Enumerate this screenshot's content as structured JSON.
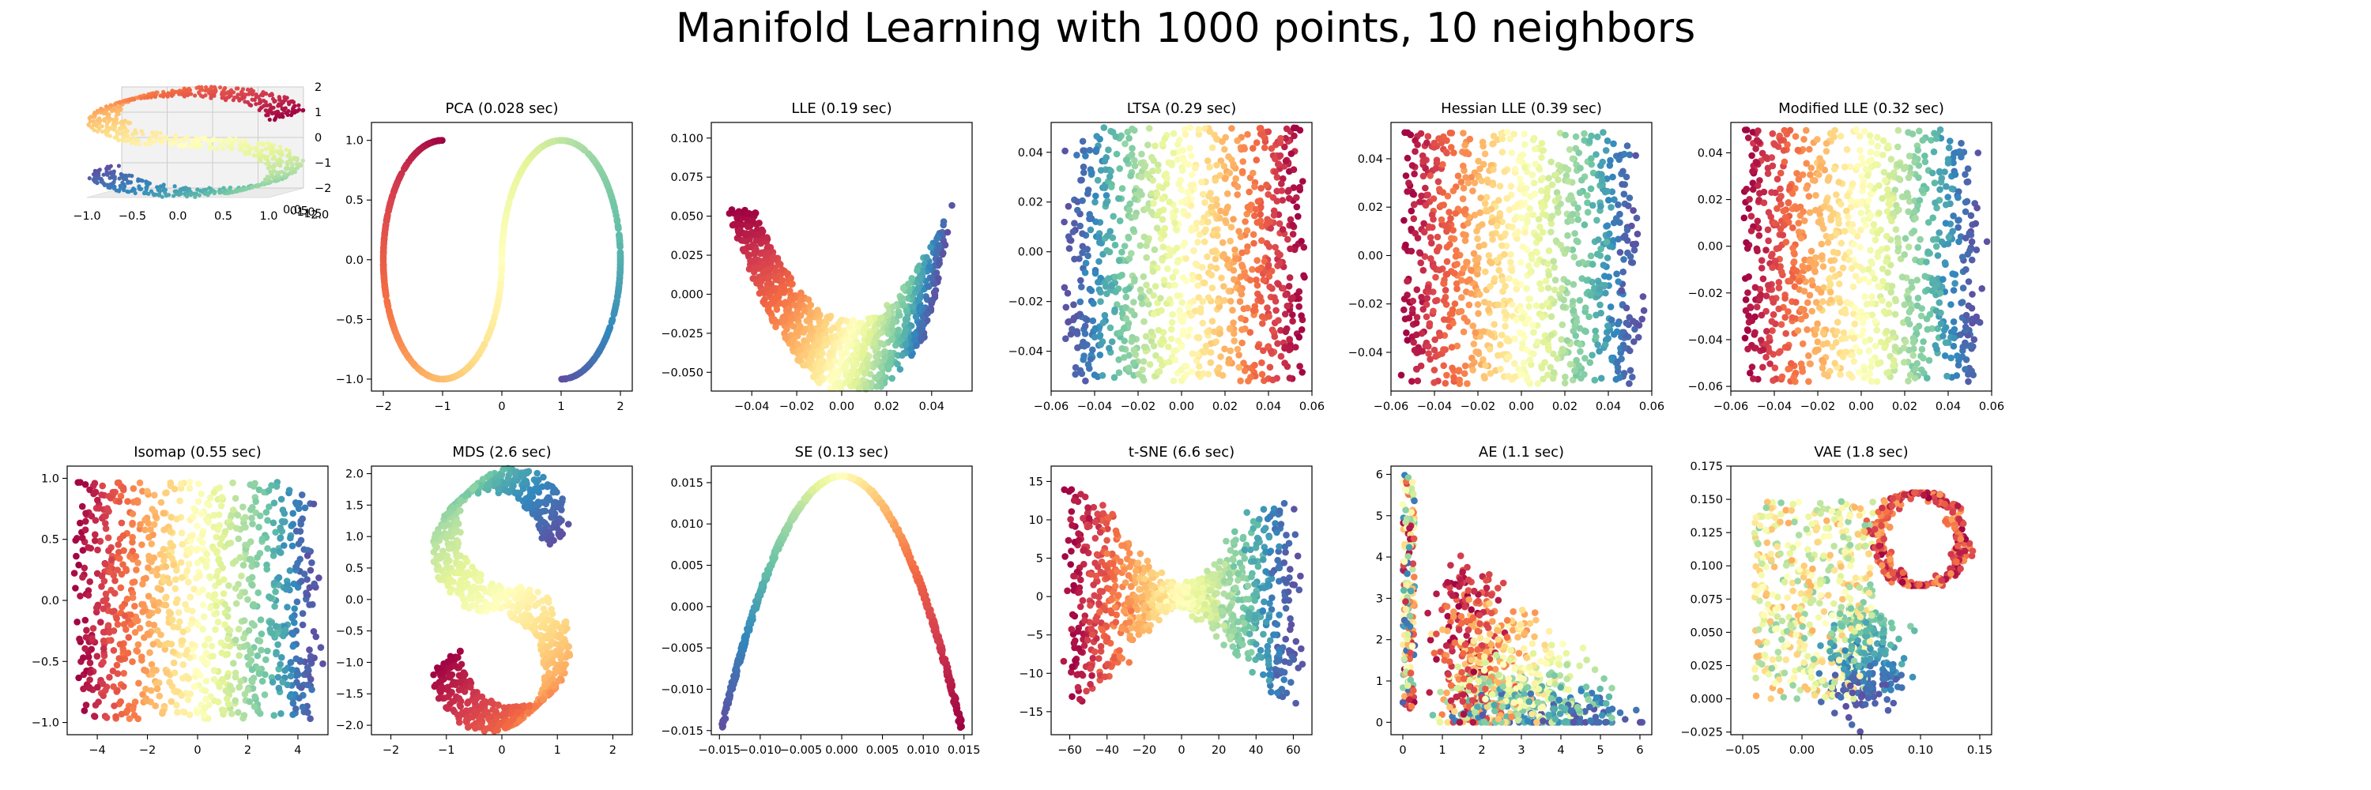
{
  "suptitle": "Manifold Learning with 1000 points, 10 neighbors",
  "colormap": [
    "#9e0142",
    "#d53e4f",
    "#f46d43",
    "#fdae61",
    "#fee08b",
    "#ffffbf",
    "#e6f598",
    "#abdda4",
    "#66c2a5",
    "#3288bd",
    "#5e4fa2"
  ],
  "chart_data": [
    {
      "type": "scatter",
      "title": "",
      "projection": "3d",
      "xlim": [
        -1.0,
        1.0
      ],
      "ylim": [
        0,
        2
      ],
      "zlim": [
        -2,
        2
      ],
      "x_ticks": [
        "−1.0",
        "−0.5",
        "0.0",
        "0.5",
        "1.0"
      ],
      "z_ticks": [
        "2",
        "1",
        "0",
        "−1",
        "−2"
      ],
      "y_ticks": [
        "0.0",
        "0.5",
        "1.0",
        "1.5",
        "2.0"
      ],
      "description_of_points": "S-curve dataset colored by position along the curve"
    },
    {
      "type": "scatter",
      "title": "PCA (0.028 sec)",
      "xlim": [
        -2.2,
        2.2
      ],
      "ylim": [
        -1.1,
        1.15
      ],
      "x_ticks": [
        -2,
        -1,
        0,
        1,
        2
      ],
      "x_tick_labels": [
        "−2",
        "−1",
        "0",
        "1",
        "2"
      ],
      "y_ticks": [
        -1.0,
        -0.5,
        0.0,
        0.5,
        1.0
      ],
      "y_tick_labels": [
        "−1.0",
        "−0.5",
        "0.0",
        "0.5",
        "1.0"
      ],
      "shape": "s-curve outline"
    },
    {
      "type": "scatter",
      "title": "LLE (0.19 sec)",
      "xlim": [
        -0.058,
        0.058
      ],
      "ylim": [
        -0.062,
        0.11
      ],
      "x_ticks": [
        -0.04,
        -0.02,
        0.0,
        0.02,
        0.04
      ],
      "x_tick_labels": [
        "−0.04",
        "−0.02",
        "0.00",
        "0.02",
        "0.04"
      ],
      "y_ticks": [
        -0.05,
        -0.025,
        0.0,
        0.025,
        0.05,
        0.075,
        0.1
      ],
      "y_tick_labels": [
        "−0.050",
        "−0.025",
        "0.000",
        "0.025",
        "0.050",
        "0.075",
        "0.100"
      ],
      "shape": "v-shaped band"
    },
    {
      "type": "scatter",
      "title": "LTSA (0.29 sec)",
      "xlim": [
        -0.06,
        0.06
      ],
      "ylim": [
        -0.056,
        0.052
      ],
      "x_ticks": [
        -0.06,
        -0.04,
        -0.02,
        0.0,
        0.02,
        0.04,
        0.06
      ],
      "x_tick_labels": [
        "−0.06",
        "−0.04",
        "−0.02",
        "0.00",
        "0.02",
        "0.04",
        "0.06"
      ],
      "y_ticks": [
        -0.04,
        -0.02,
        0.0,
        0.02,
        0.04
      ],
      "y_tick_labels": [
        "−0.04",
        "−0.02",
        "0.00",
        "0.02",
        "0.04"
      ],
      "shape": "filled rectangle, yellow-green-blue left to right"
    },
    {
      "type": "scatter",
      "title": "Hessian LLE (0.39 sec)",
      "xlim": [
        -0.06,
        0.06
      ],
      "ylim": [
        -0.056,
        0.055
      ],
      "x_ticks": [
        -0.06,
        -0.04,
        -0.02,
        0.0,
        0.02,
        0.04,
        0.06
      ],
      "x_tick_labels": [
        "−0.06",
        "−0.04",
        "−0.02",
        "0.00",
        "0.02",
        "0.04",
        "0.06"
      ],
      "y_ticks": [
        -0.04,
        -0.02,
        0.0,
        0.02,
        0.04
      ],
      "y_tick_labels": [
        "−0.04",
        "−0.02",
        "0.00",
        "0.02",
        "0.04"
      ],
      "shape": "filled rectangle, red to blue left to right"
    },
    {
      "type": "scatter",
      "title": "Modified LLE (0.32 sec)",
      "xlim": [
        -0.06,
        0.06
      ],
      "ylim": [
        -0.062,
        0.053
      ],
      "x_ticks": [
        -0.06,
        -0.04,
        -0.02,
        0.0,
        0.02,
        0.04,
        0.06
      ],
      "x_tick_labels": [
        "−0.06",
        "−0.04",
        "−0.02",
        "0.00",
        "0.02",
        "0.04",
        "0.06"
      ],
      "y_ticks": [
        -0.06,
        -0.04,
        -0.02,
        0.0,
        0.02,
        0.04
      ],
      "y_tick_labels": [
        "−0.06",
        "−0.04",
        "−0.02",
        "0.00",
        "0.02",
        "0.04"
      ],
      "shape": "filled rectangle, red to blue left to right"
    },
    {
      "type": "scatter",
      "title": "Isomap (0.55 sec)",
      "xlim": [
        -5.2,
        5.2
      ],
      "ylim": [
        -1.1,
        1.1
      ],
      "x_ticks": [
        -4,
        -2,
        0,
        2,
        4
      ],
      "x_tick_labels": [
        "−4",
        "−2",
        "0",
        "2",
        "4"
      ],
      "y_ticks": [
        -1.0,
        -0.5,
        0.0,
        0.5,
        1.0
      ],
      "y_tick_labels": [
        "−1.0",
        "−0.5",
        "0.0",
        "0.5",
        "1.0"
      ],
      "shape": "filled rectangle, red to blue left to right"
    },
    {
      "type": "scatter",
      "title": "MDS (2.6 sec)",
      "xlim": [
        -2.35,
        2.35
      ],
      "ylim": [
        -2.15,
        2.12
      ],
      "x_ticks": [
        -2,
        -1,
        0,
        1,
        2
      ],
      "x_tick_labels": [
        "−2",
        "−1",
        "0",
        "1",
        "2"
      ],
      "y_ticks": [
        -2.0,
        -1.5,
        -1.0,
        -0.5,
        0.0,
        0.5,
        1.0,
        1.5,
        2.0
      ],
      "y_tick_labels": [
        "−2.0",
        "−1.5",
        "−1.0",
        "−0.5",
        "0.0",
        "0.5",
        "1.0",
        "1.5",
        "2.0"
      ],
      "shape": "thick s-curve band"
    },
    {
      "type": "scatter",
      "title": "SE (0.13 sec)",
      "xlim": [
        -0.016,
        0.016
      ],
      "ylim": [
        -0.0155,
        0.017
      ],
      "x_ticks": [
        -0.015,
        -0.01,
        -0.005,
        0.0,
        0.005,
        0.01,
        0.015
      ],
      "x_tick_labels": [
        "−0.015",
        "−0.010",
        "−0.005",
        "0.000",
        "0.005",
        "0.010",
        "0.015"
      ],
      "y_ticks": [
        -0.015,
        -0.01,
        -0.005,
        0.0,
        0.005,
        0.01,
        0.015
      ],
      "y_tick_labels": [
        "−0.015",
        "−0.010",
        "−0.005",
        "0.000",
        "0.005",
        "0.010",
        "0.015"
      ],
      "shape": "inverted parabola arc"
    },
    {
      "type": "scatter",
      "title": "t-SNE (6.6 sec)",
      "xlim": [
        -70,
        70
      ],
      "ylim": [
        -18,
        17
      ],
      "x_ticks": [
        -60,
        -40,
        -20,
        0,
        20,
        40,
        60
      ],
      "x_tick_labels": [
        "−60",
        "−40",
        "−20",
        "0",
        "20",
        "40",
        "60"
      ],
      "y_ticks": [
        -15,
        -10,
        -5,
        0,
        5,
        10,
        15
      ],
      "y_tick_labels": [
        "−15",
        "−10",
        "−5",
        "0",
        "5",
        "10",
        "15"
      ],
      "shape": "folded band"
    },
    {
      "type": "scatter",
      "title": "AE (1.1 sec)",
      "xlim": [
        -0.3,
        6.3
      ],
      "ylim": [
        -0.3,
        6.2
      ],
      "x_ticks": [
        0,
        1,
        2,
        3,
        4,
        5,
        6
      ],
      "x_tick_labels": [
        "0",
        "1",
        "2",
        "3",
        "4",
        "5",
        "6"
      ],
      "y_ticks": [
        0,
        1,
        2,
        3,
        4,
        5,
        6
      ],
      "y_tick_labels": [
        "0",
        "1",
        "2",
        "3",
        "4",
        "5",
        "6"
      ],
      "shape": "triangle with left column and bottom-right cluster"
    },
    {
      "type": "scatter",
      "title": "VAE (1.8 sec)",
      "xlim": [
        -0.06,
        0.16
      ],
      "ylim": [
        -0.027,
        0.175
      ],
      "x_ticks": [
        -0.05,
        0.0,
        0.05,
        0.1,
        0.15
      ],
      "x_tick_labels": [
        "−0.05",
        "0.00",
        "0.05",
        "0.10",
        "0.15"
      ],
      "y_ticks": [
        -0.025,
        0.0,
        0.025,
        0.05,
        0.075,
        0.1,
        0.125,
        0.15,
        0.175
      ],
      "y_tick_labels": [
        "−0.025",
        "0.000",
        "0.025",
        "0.050",
        "0.075",
        "0.100",
        "0.125",
        "0.150",
        "0.175"
      ],
      "shape": "irregular fan with loop at upper right"
    }
  ]
}
